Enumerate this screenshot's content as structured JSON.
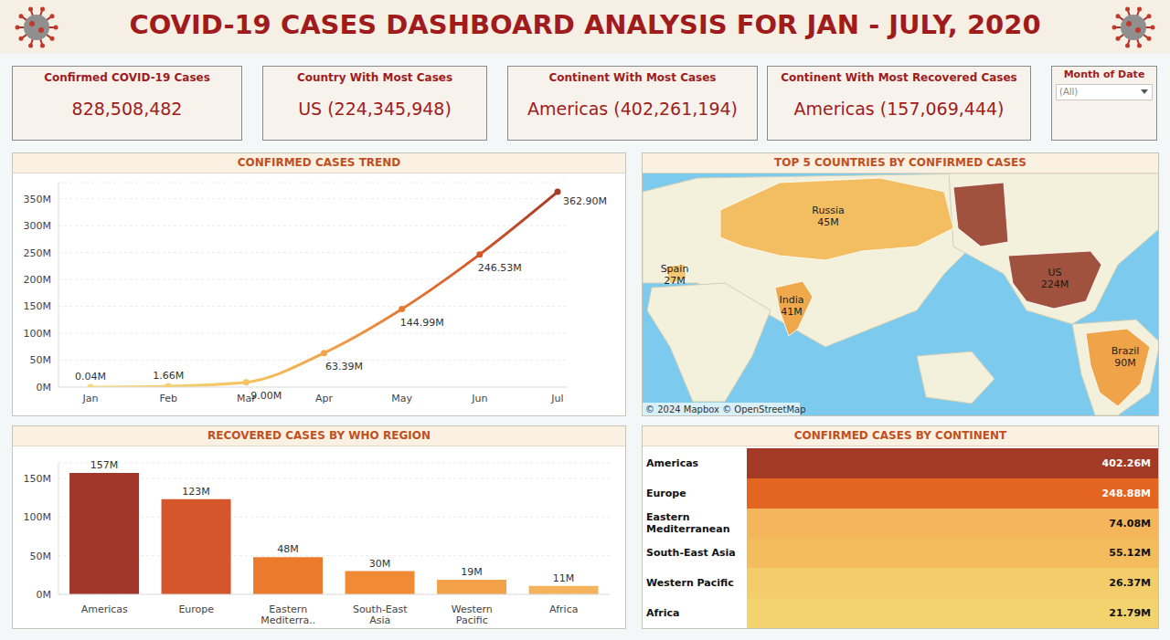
{
  "title": "COVID-19 CASES DASHBOARD ANALYSIS FOR JAN - JULY, 2020",
  "kpis": [
    {
      "title": "Confirmed COVID-19 Cases",
      "value": "828,508,482"
    },
    {
      "title": "Country With Most Cases",
      "value": "US (224,345,948)"
    },
    {
      "title": "Continent With Most Cases",
      "value": "Americas (402,261,194)"
    },
    {
      "title": "Continent With Most Recovered Cases",
      "value": "Americas (157,069,444)"
    }
  ],
  "filter": {
    "title": "Month of Date",
    "value": "(All)"
  },
  "chart_data": [
    {
      "type": "line",
      "title": "CONFIRMED CASES TREND",
      "categories": [
        "Jan",
        "Feb",
        "Mar",
        "Apr",
        "May",
        "Jun",
        "Jul"
      ],
      "values": [
        0.04,
        1.66,
        9.0,
        63.39,
        144.99,
        246.53,
        362.9
      ],
      "value_labels": [
        "0.04M",
        "1.66M",
        "9.00M",
        "63.39M",
        "144.99M",
        "246.53M",
        "362.90M"
      ],
      "colors": [
        "#f7d77a",
        "#f6cf6e",
        "#f5c35f",
        "#f0a54a",
        "#e67a32",
        "#d4562a",
        "#a63a26"
      ],
      "ylim": [
        0,
        380
      ],
      "yticks": [
        {
          "value": 0,
          "label": "0M"
        },
        {
          "value": 50,
          "label": "50M"
        },
        {
          "value": 100,
          "label": "100M"
        },
        {
          "value": 150,
          "label": "150M"
        },
        {
          "value": 200,
          "label": "200M"
        },
        {
          "value": 250,
          "label": "250M"
        },
        {
          "value": 300,
          "label": "300M"
        },
        {
          "value": 350,
          "label": "350M"
        }
      ],
      "grid": true,
      "data_labels": true,
      "marker": "circle"
    },
    {
      "type": "map",
      "title": "TOP 5 COUNTRIES BY CONFIRMED CASES",
      "categories": [
        "Russia",
        "Spain",
        "India",
        "US",
        "Brazil"
      ],
      "values": [
        45,
        27,
        41,
        224,
        90
      ],
      "value_labels": [
        "45M",
        "27M",
        "41M",
        "224M",
        "90M"
      ],
      "colors": [
        "#f3be62",
        "#f5c870",
        "#f0a84c",
        "#a0523f",
        "#f0a44a"
      ],
      "data_labels": true,
      "attribution": "© 2024 Mapbox © OpenStreetMap"
    },
    {
      "type": "bar",
      "title": "RECOVERED CASES BY WHO REGION",
      "categories": [
        "Americas",
        "Europe",
        "Eastern Mediterra..",
        "South-East Asia",
        "Western Pacific",
        "Africa"
      ],
      "values": [
        157,
        123,
        48,
        30,
        19,
        11
      ],
      "value_labels": [
        "157M",
        "123M",
        "48M",
        "30M",
        "19M",
        "11M"
      ],
      "colors": [
        "#a0372a",
        "#d4562a",
        "#ec7a2c",
        "#f08a35",
        "#f4a24a",
        "#f6b35e"
      ],
      "ylim": [
        0,
        170
      ],
      "yticks": [
        {
          "value": 0,
          "label": "0M"
        },
        {
          "value": 50,
          "label": "50M"
        },
        {
          "value": 100,
          "label": "100M"
        },
        {
          "value": 150,
          "label": "150M"
        }
      ],
      "grid": true,
      "data_labels": true
    },
    {
      "type": "highlight_table",
      "title": "CONFIRMED CASES BY CONTINENT",
      "categories": [
        "Americas",
        "Europe",
        "Eastern Mediterranean",
        "South-East Asia",
        "Western Pacific",
        "Africa"
      ],
      "values": [
        402.26,
        248.88,
        74.08,
        55.12,
        26.37,
        21.79
      ],
      "value_labels": [
        "402.26M",
        "248.88M",
        "74.08M",
        "55.12M",
        "26.37M",
        "21.79M"
      ],
      "colors": [
        "#a23a26",
        "#e4651f",
        "#f5b55b",
        "#f5bc5e",
        "#f3cd6a",
        "#f2d36d"
      ],
      "data_labels": true
    }
  ]
}
